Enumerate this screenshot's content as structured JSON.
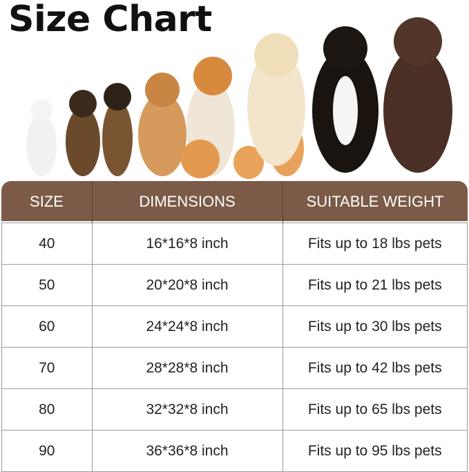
{
  "title": "Size Chart",
  "image": {
    "name": "dogs-and-cats-photo",
    "description_icon": "pets-photo"
  },
  "colors": {
    "header_bg": "#7b5b47",
    "header_text": "#ffffff",
    "border": "#9a9a9a"
  },
  "table": {
    "headers": [
      "SIZE",
      "DIMENSIONS",
      "SUITABLE WEIGHT"
    ],
    "rows": [
      [
        "40",
        "16*16*8 inch",
        "Fits up to 18 lbs pets"
      ],
      [
        "50",
        "20*20*8 inch",
        "Fits up to 21 lbs pets"
      ],
      [
        "60",
        "24*24*8 inch",
        "Fits up to 30 lbs pets"
      ],
      [
        "70",
        "28*28*8 inch",
        "Fits up to 42 lbs pets"
      ],
      [
        "80",
        "32*32*8 inch",
        "Fits up to 65 lbs pets"
      ],
      [
        "90",
        "36*36*8 inch",
        "Fits up to 95 lbs pets"
      ]
    ]
  }
}
